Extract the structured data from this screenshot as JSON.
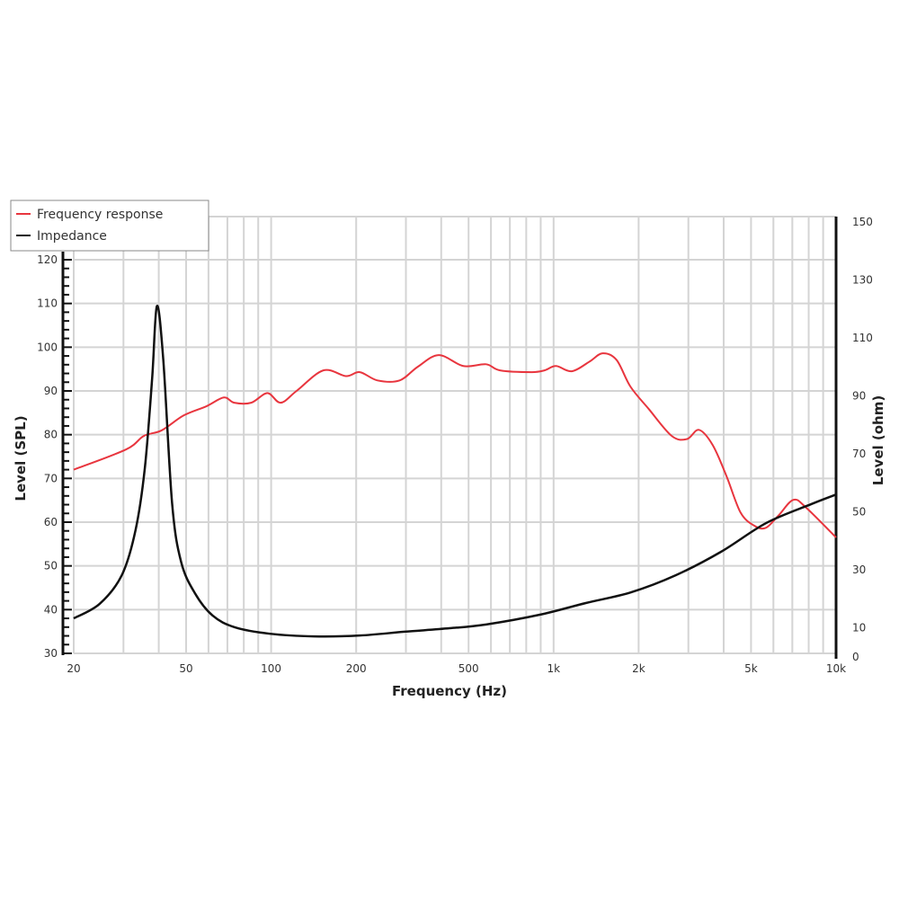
{
  "chart_data": {
    "type": "line",
    "xlabel": "Frequency (Hz)",
    "ylabel": "Level (SPL)",
    "y2label": "Level (ohm)",
    "xscale": "log",
    "xlim": [
      20,
      10000
    ],
    "ylim": [
      30,
      120
    ],
    "y2lim": [
      0,
      150
    ],
    "grid": true,
    "legend_position": "top-left",
    "x_ticks": [
      20,
      50,
      100,
      200,
      500,
      1000,
      2000,
      5000,
      10000
    ],
    "x_tick_labels": [
      "20",
      "50",
      "100",
      "200",
      "500",
      "1k",
      "2k",
      "5k",
      "10k"
    ],
    "y_ticks": [
      30,
      40,
      50,
      60,
      70,
      80,
      90,
      100,
      110,
      120
    ],
    "y_tick_labels": [
      "30",
      "40",
      "50",
      "60",
      "70",
      "80",
      "90",
      "100",
      "110",
      "120"
    ],
    "y2_ticks": [
      0,
      10,
      30,
      50,
      70,
      90,
      110,
      130,
      150
    ],
    "y2_tick_labels": [
      "0",
      "10",
      "30",
      "50",
      "70",
      "90",
      "110",
      "130",
      "150"
    ],
    "series": [
      {
        "name": "Frequency response",
        "axis": "left",
        "color": "#e8353e",
        "x": [
          20,
          30.6,
          35.4,
          41,
          49,
          59,
          68,
          74,
          85,
          97,
          108,
          123,
          153,
          184,
          206,
          238,
          285,
          330,
          392,
          479,
          577,
          646,
          836,
          928,
          1020,
          1160,
          1340,
          1490,
          1670,
          1870,
          2170,
          2620,
          2970,
          3270,
          3660,
          4100,
          4590,
          5130,
          5640,
          6270,
          7060,
          7840,
          10000
        ],
        "y": [
          72,
          76.6,
          79.7,
          81,
          84.4,
          86.5,
          88.5,
          87.3,
          87.3,
          89.5,
          87.3,
          90,
          94.7,
          93.4,
          94.3,
          92.4,
          92.4,
          95.5,
          98.2,
          95.7,
          96.1,
          94.7,
          94.3,
          94.7,
          95.7,
          94.5,
          96.7,
          98.6,
          97.1,
          91,
          85.9,
          79.7,
          79,
          81.1,
          77.6,
          70.4,
          62.2,
          59.2,
          58.7,
          61.6,
          65.1,
          63.3,
          56.5
        ]
      },
      {
        "name": "Impedance",
        "axis": "right",
        "color": "#111111",
        "x": [
          20,
          24.7,
          29.6,
          33.1,
          35.7,
          37.9,
          39.4,
          41.5,
          44.6,
          48,
          53.7,
          62,
          74.5,
          99,
          142,
          206,
          297,
          428,
          577,
          897,
          1300,
          1880,
          2710,
          3920,
          5660,
          8170,
          10000
        ],
        "y": [
          13.3,
          18.3,
          28.2,
          43.7,
          65,
          96,
          121,
          102.6,
          53,
          32.8,
          22,
          14.3,
          10.2,
          8,
          7.1,
          7.4,
          8.7,
          9.9,
          11.2,
          14.6,
          18.6,
          22.3,
          28.2,
          36.3,
          46.2,
          52.7,
          56
        ]
      }
    ]
  }
}
